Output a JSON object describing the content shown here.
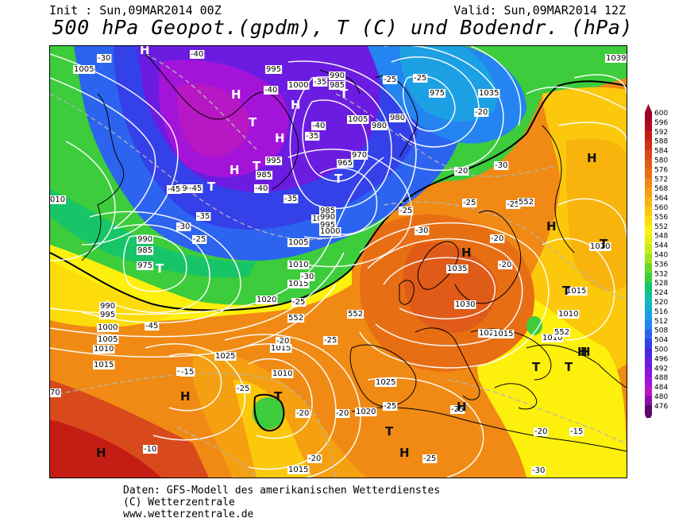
{
  "header": {
    "init": "Init : Sun,09MAR2014 00Z",
    "valid": "Valid: Sun,09MAR2014 12Z",
    "title": "500 hPa Geopot.(gpdm), T (C) und Bodendr. (hPa)"
  },
  "footer": {
    "line1": "Daten: GFS-Modell des amerikanischen Wetterdienstes",
    "line2": "(C) Wetterzentrale",
    "line3": "www.wetterzentrale.de"
  },
  "legend": {
    "values": [
      "600",
      "596",
      "592",
      "588",
      "584",
      "580",
      "576",
      "572",
      "568",
      "564",
      "560",
      "556",
      "552",
      "548",
      "544",
      "540",
      "536",
      "532",
      "528",
      "524",
      "520",
      "516",
      "512",
      "508",
      "504",
      "500",
      "496",
      "492",
      "488",
      "484",
      "480",
      "476"
    ],
    "colors": [
      "#a0002a",
      "#b40a1e",
      "#c41e14",
      "#d03214",
      "#d84a1c",
      "#e05a18",
      "#e86e14",
      "#f08a14",
      "#f4a010",
      "#f8b40c",
      "#fcc80c",
      "#fcdc0c",
      "#fcf00c",
      "#e8f010",
      "#c8ec14",
      "#a0e41c",
      "#6cd82c",
      "#3ccc3c",
      "#18c468",
      "#10c0a0",
      "#14b4c8",
      "#1ca0e4",
      "#2484f0",
      "#2c64f0",
      "#3440e8",
      "#4c28e0",
      "#6c1ce0",
      "#8c14e0",
      "#a414d8",
      "#b818c4",
      "#8c10a8",
      "#5c0870"
    ]
  },
  "map_labels": {
    "pressure": [
      "1005",
      "995",
      "1000",
      "990",
      "985",
      "1005",
      "985",
      "995",
      "990",
      "1005",
      "980",
      "975",
      "970",
      "965",
      "985",
      "990",
      "995",
      "1000",
      "1005",
      "1010",
      "1015",
      "1020",
      "1025",
      "1010",
      "1015",
      "1020",
      "1025",
      "1030",
      "1035",
      "1020",
      "1015",
      "1010",
      "990",
      "995",
      "1000",
      "1005",
      "1010",
      "1015",
      "975",
      "985",
      "990",
      "1035",
      "1039",
      "1020",
      "1015",
      "1010",
      "1015",
      "980"
    ],
    "temps": [
      "-30",
      "-40",
      "-45",
      "-40",
      "-35",
      "-40",
      "-45",
      "-35",
      "-30",
      "-25",
      "-25",
      "-35",
      "-30",
      "-25",
      "-20",
      "-25",
      "-30",
      "-25",
      "-20",
      "-15",
      "-25",
      "-20",
      "-20",
      "-25",
      "-20",
      "-25",
      "-10",
      "-15",
      "-20",
      "-25",
      "-20",
      "-15",
      "-20",
      "-25",
      "-30",
      "-40",
      "-35",
      "-25",
      "-20",
      "-30",
      "-25",
      "-45"
    ],
    "contour_552": "552",
    "centers_H": "H",
    "centers_T": "T",
    "low_520": "520",
    "west_edge": "010",
    "west_edge2": "70"
  },
  "colors": {
    "accent_land": "#000000",
    "isobar": "#ffffff",
    "isotherm": "#b4b4b4"
  }
}
